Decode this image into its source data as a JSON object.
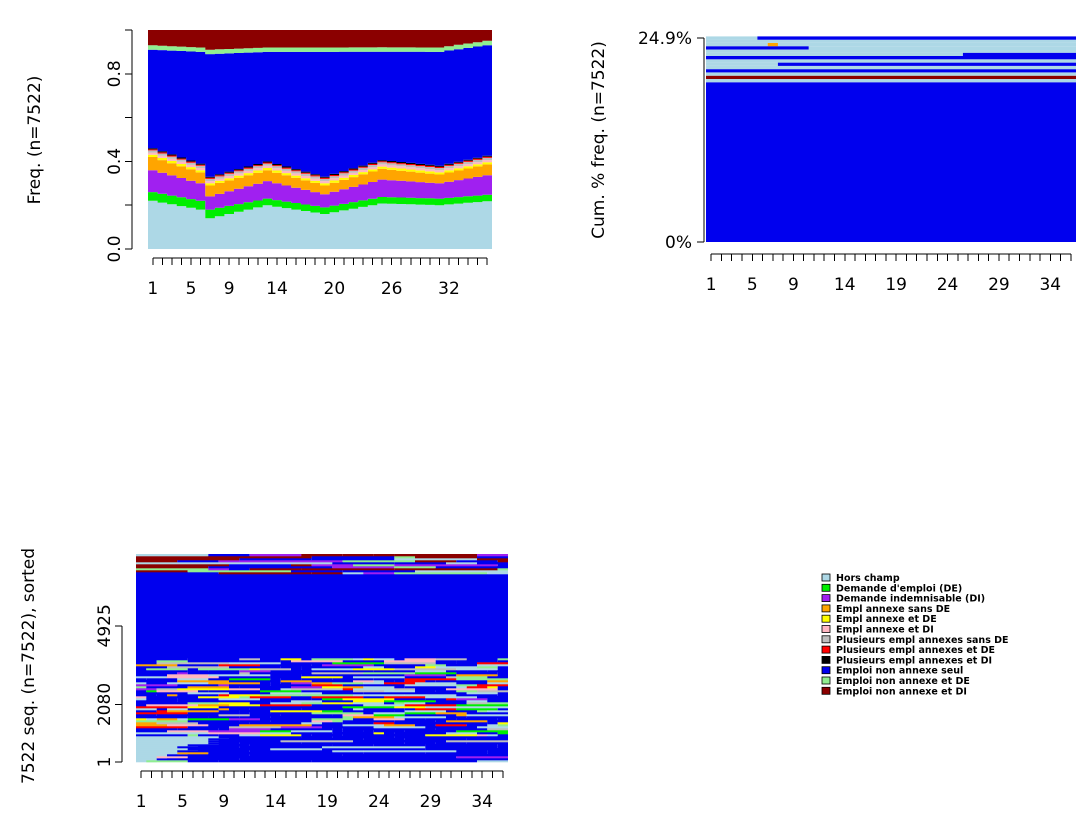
{
  "states": [
    {
      "code": "HC",
      "label": "Hors champ",
      "color": "#ADD8E6"
    },
    {
      "code": "DE",
      "label": "Demande d'emploi (DE)",
      "color": "#00EE00"
    },
    {
      "code": "DI",
      "label": "Demande indemnisable (DI)",
      "color": "#A020F0"
    },
    {
      "code": "EA",
      "label": "Empl annexe sans DE",
      "color": "#FFA500"
    },
    {
      "code": "EADE",
      "label": "Empl annexe et DE",
      "color": "#FFFF00"
    },
    {
      "code": "EADI",
      "label": "Empl annexe et DI",
      "color": "#FFB6C1"
    },
    {
      "code": "PEA",
      "label": "Plusieurs empl annexes sans DE",
      "color": "#BEBEBE"
    },
    {
      "code": "PEADE",
      "label": "Plusieurs empl annexes et DE",
      "color": "#FF0000"
    },
    {
      "code": "PEADI",
      "label": "Plusieurs empl annexes et DI",
      "color": "#000000"
    },
    {
      "code": "ENA",
      "label": "Emploi non annexe seul",
      "color": "#0000EE"
    },
    {
      "code": "ENADE",
      "label": "Emploi non annexe et DE",
      "color": "#90EE90"
    },
    {
      "code": "ENADI",
      "label": "Emploi non annexe et DI",
      "color": "#8B0000"
    }
  ],
  "chart_data": [
    {
      "type": "area",
      "ylabel": "Freq. (n=7522)",
      "x_range": [
        1,
        36
      ],
      "ylim": [
        0,
        1
      ],
      "x_tick_labels": [
        "1",
        "5",
        "9",
        "14",
        "20",
        "26",
        "32"
      ],
      "x_tick_values": [
        1,
        5,
        9,
        14,
        20,
        26,
        32
      ],
      "y_tick_labels": [
        "0.0",
        "0.4",
        "0.8"
      ],
      "y_tick_values": [
        0,
        0.4,
        0.8
      ],
      "x": [
        1,
        6,
        7,
        13,
        19,
        25,
        31,
        36
      ],
      "series": [
        {
          "code": "HC",
          "values": [
            0.22,
            0.18,
            0.14,
            0.2,
            0.16,
            0.21,
            0.2,
            0.22
          ]
        },
        {
          "code": "DE",
          "values": [
            0.04,
            0.04,
            0.04,
            0.03,
            0.03,
            0.03,
            0.03,
            0.03
          ]
        },
        {
          "code": "DI",
          "values": [
            0.1,
            0.08,
            0.06,
            0.08,
            0.06,
            0.08,
            0.07,
            0.09
          ]
        },
        {
          "code": "EA",
          "values": [
            0.06,
            0.05,
            0.05,
            0.05,
            0.04,
            0.05,
            0.04,
            0.05
          ]
        },
        {
          "code": "EADE",
          "values": [
            0.01,
            0.01,
            0.01,
            0.01,
            0.01,
            0.01,
            0.01,
            0.01
          ]
        },
        {
          "code": "EADI",
          "values": [
            0.01,
            0.01,
            0.01,
            0.01,
            0.01,
            0.01,
            0.01,
            0.01
          ]
        },
        {
          "code": "PEA",
          "values": [
            0.01,
            0.01,
            0.01,
            0.01,
            0.01,
            0.01,
            0.01,
            0.01
          ]
        },
        {
          "code": "PEADE",
          "values": [
            0.005,
            0.005,
            0.005,
            0.005,
            0.005,
            0.005,
            0.005,
            0.005
          ]
        },
        {
          "code": "PEADI",
          "values": [
            0.005,
            0.005,
            0.005,
            0.005,
            0.005,
            0.005,
            0.005,
            0.005
          ]
        },
        {
          "code": "ENA",
          "values": [
            0.45,
            0.51,
            0.56,
            0.5,
            0.57,
            0.5,
            0.52,
            0.51
          ]
        },
        {
          "code": "ENADE",
          "values": [
            0.02,
            0.02,
            0.02,
            0.02,
            0.02,
            0.02,
            0.02,
            0.02
          ]
        },
        {
          "code": "ENADI",
          "values": [
            0.07,
            0.08,
            0.09,
            0.08,
            0.08,
            0.08,
            0.08,
            0.05
          ]
        }
      ]
    },
    {
      "type": "sequence-frequency",
      "ylabel": "Cum. % freq. (n=7522)",
      "x_range": [
        1,
        36
      ],
      "y_tick_labels": [
        "0%",
        "24.9%"
      ],
      "y_tick_values": [
        0,
        24.9
      ],
      "x_tick_labels": [
        "1",
        "5",
        "9",
        "14",
        "19",
        "24",
        "29",
        "34"
      ],
      "x_tick_values": [
        1,
        5,
        9,
        14,
        19,
        24,
        29,
        34
      ],
      "sequences": [
        {
          "pct": 19.5,
          "spells": [
            [
              "ENA",
              1,
              36
            ]
          ]
        },
        {
          "pct": 0.4,
          "spells": [
            [
              "HC",
              1,
              36
            ]
          ]
        },
        {
          "pct": 0.4,
          "spells": [
            [
              "ENADI",
              1,
              36
            ]
          ]
        },
        {
          "pct": 0.4,
          "spells": [
            [
              "HC",
              1,
              36
            ]
          ]
        },
        {
          "pct": 0.4,
          "spells": [
            [
              "ENA",
              1,
              36
            ]
          ]
        },
        {
          "pct": 0.4,
          "spells": [
            [
              "HC",
              1,
              36
            ]
          ]
        },
        {
          "pct": 0.4,
          "spells": [
            [
              "HC",
              1,
              8
            ],
            [
              "ENA",
              8,
              36
            ]
          ]
        },
        {
          "pct": 0.4,
          "spells": [
            [
              "HC",
              1,
              36
            ]
          ]
        },
        {
          "pct": 0.4,
          "spells": [
            [
              "ENA",
              1,
              36
            ]
          ]
        },
        {
          "pct": 0.4,
          "spells": [
            [
              "HC",
              1,
              26
            ],
            [
              "ENA",
              26,
              36
            ]
          ]
        },
        {
          "pct": 0.4,
          "spells": [
            [
              "HC",
              1,
              36
            ]
          ]
        },
        {
          "pct": 0.4,
          "spells": [
            [
              "ENA",
              1,
              11
            ],
            [
              "HC",
              11,
              36
            ]
          ]
        },
        {
          "pct": 0.4,
          "spells": [
            [
              "HC",
              1,
              7
            ],
            [
              "EA",
              7,
              8
            ],
            [
              "HC",
              8,
              36
            ]
          ]
        },
        {
          "pct": 0.4,
          "spells": [
            [
              "HC",
              1,
              36
            ]
          ]
        },
        {
          "pct": 0.4,
          "spells": [
            [
              "HC",
              1,
              6
            ],
            [
              "ENA",
              6,
              36
            ]
          ]
        }
      ]
    },
    {
      "type": "sequence-index",
      "ylabel": "7522 seq. (n=7522), sorted",
      "x_range": [
        1,
        36
      ],
      "y_range": [
        1,
        7522
      ],
      "y_tick_labels": [
        "1",
        "2080",
        "4925"
      ],
      "y_tick_values": [
        1,
        2080,
        4925
      ],
      "x_tick_labels": [
        "1",
        "5",
        "9",
        "14",
        "19",
        "24",
        "29",
        "34"
      ],
      "x_tick_values": [
        1,
        5,
        9,
        14,
        19,
        24,
        29,
        34
      ],
      "legend_position": "bottom-right"
    }
  ]
}
